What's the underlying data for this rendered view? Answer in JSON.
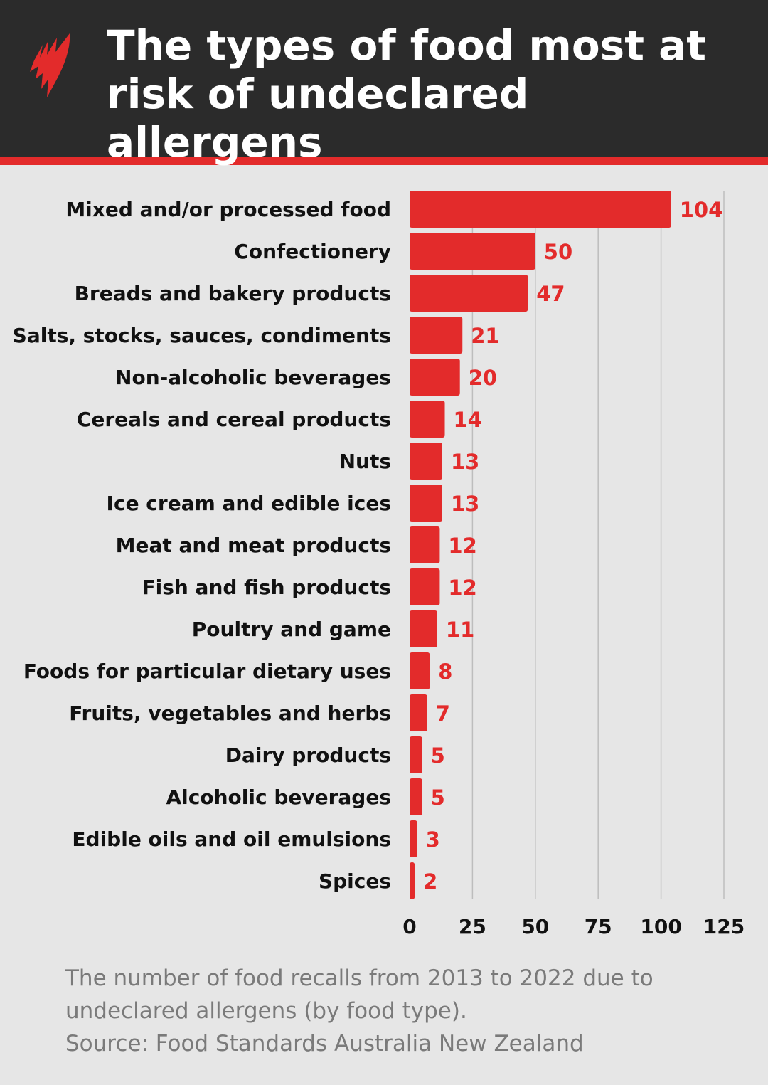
{
  "header": {
    "title": "The types of food most at risk of undeclared allergens",
    "logo": "SBS logo"
  },
  "colors": {
    "bar": "#e32b2b",
    "header_bg": "#2b2b2b",
    "background": "#e6e6e6"
  },
  "chart_data": {
    "type": "bar",
    "orientation": "horizontal",
    "title": "The types of food most at risk of undeclared allergens",
    "categories": [
      "Mixed and/or processed food",
      "Confectionery",
      "Breads and bakery products",
      "Salts, stocks, sauces, condiments",
      "Non-alcoholic beverages",
      "Cereals and cereal products",
      "Nuts",
      "Ice cream and edible ices",
      "Meat and meat products",
      "Fish and fish products",
      "Poultry and game",
      "Foods for particular dietary uses",
      "Fruits, vegetables and herbs",
      "Dairy products",
      "Alcoholic beverages",
      "Edible oils and oil emulsions",
      "Spices"
    ],
    "values": [
      104,
      50,
      47,
      21,
      20,
      14,
      13,
      13,
      12,
      12,
      11,
      8,
      7,
      5,
      5,
      3,
      2
    ],
    "xlim": [
      0,
      125
    ],
    "xticks": [
      0,
      25,
      50,
      75,
      100,
      125
    ],
    "grid": "vertical"
  },
  "footer": {
    "caption_line1": "The number of food recalls from 2013 to 2022 due to",
    "caption_line2": "undeclared allergens (by food type).",
    "source": "Source: Food Standards Australia New Zealand"
  }
}
